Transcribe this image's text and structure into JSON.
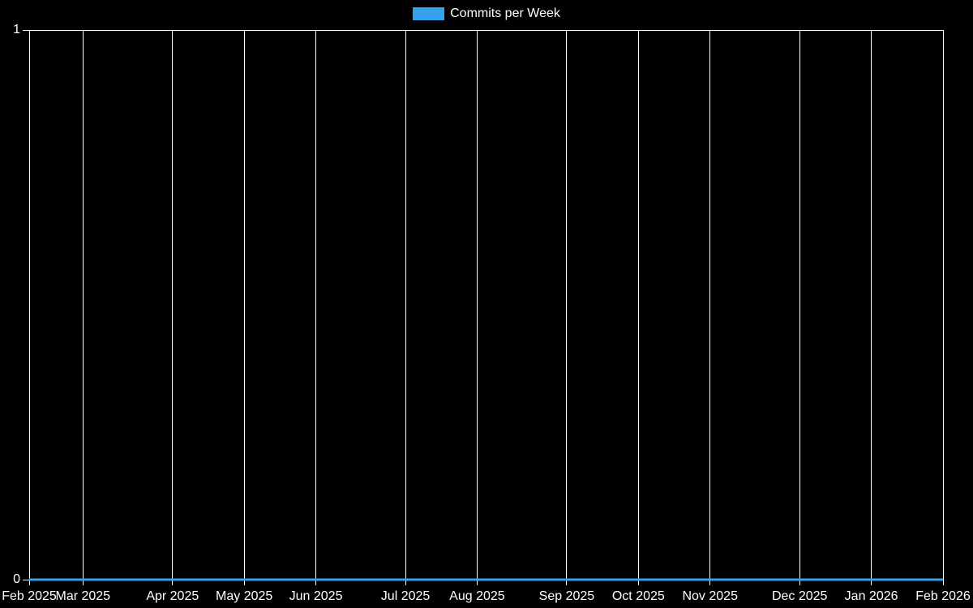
{
  "chart_data": {
    "type": "line",
    "title": "Commits per Week",
    "legend_position": "top",
    "background": "#000000",
    "text_color": "#ffffff",
    "grid_color": "#ffffff",
    "grid": "vertical-only, plus top and bottom border lines with axis tick marks",
    "ylim": [
      0,
      1
    ],
    "y_ticks": [
      0,
      1
    ],
    "weeks_total": 52,
    "x_ticks": [
      {
        "label": "Feb 2025",
        "week": 0
      },
      {
        "label": "Mar 2025",
        "week": 3
      },
      {
        "label": "Apr 2025",
        "week": 8
      },
      {
        "label": "May 2025",
        "week": 12
      },
      {
        "label": "Jun 2025",
        "week": 16
      },
      {
        "label": "Jul 2025",
        "week": 21
      },
      {
        "label": "Aug 2025",
        "week": 25
      },
      {
        "label": "Sep 2025",
        "week": 30
      },
      {
        "label": "Oct 2025",
        "week": 34
      },
      {
        "label": "Nov 2025",
        "week": 38
      },
      {
        "label": "Dec 2025",
        "week": 43
      },
      {
        "label": "Jan 2026",
        "week": 47
      },
      {
        "label": "Feb 2026",
        "week": 51
      }
    ],
    "series": [
      {
        "name": "Commits per Week",
        "color": "#36a2eb",
        "line_width": 3,
        "values": [
          0,
          0,
          0,
          0,
          0,
          0,
          0,
          0,
          0,
          0,
          0,
          0,
          0,
          0,
          0,
          0,
          0,
          0,
          0,
          0,
          0,
          0,
          0,
          0,
          0,
          0,
          0,
          0,
          0,
          0,
          0,
          0,
          0,
          0,
          0,
          0,
          0,
          0,
          0,
          0,
          0,
          0,
          0,
          0,
          0,
          0,
          0,
          0,
          0,
          0,
          0,
          0
        ]
      }
    ]
  }
}
